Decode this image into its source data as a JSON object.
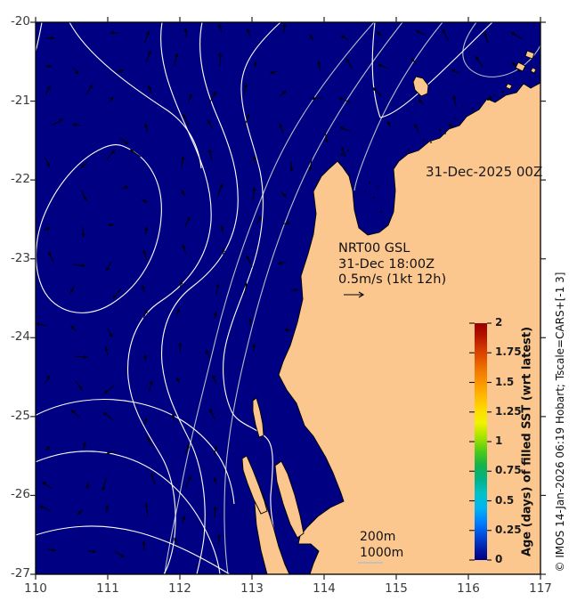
{
  "map": {
    "date_stamp": "31-Dec-2025 00Z",
    "forecast": {
      "model": "NRT00 GSL",
      "valid_time": "31-Dec 18:00Z",
      "vector_scale": "0.5m/s (1kt 12h)"
    },
    "depth_contour_legend": {
      "shallow": "200m",
      "deep": "1000m"
    },
    "credit": "© IMOS 14-Jan-2026 06:19 Hobart; Tscale=CARS+[-1 3]"
  },
  "axes": {
    "x_tick_labels": [
      "110",
      "111",
      "112",
      "113",
      "114",
      "115",
      "116",
      "117"
    ],
    "y_tick_labels": [
      "-20",
      "-21",
      "-22",
      "-23",
      "-24",
      "-25",
      "-26",
      "-27"
    ]
  },
  "colorbar": {
    "title": "Age (days) of filled SST (wrt latest)",
    "tick_labels": [
      "0",
      "0.25",
      "0.5",
      "0.75",
      "1",
      "1.25",
      "1.5",
      "1.75",
      "2"
    ]
  },
  "colors": {
    "ocean": "#000082",
    "land": "#FBC78F",
    "contour_200m": "#FFFFFF",
    "contour_1000m": "#B4BEC8",
    "vectors": "#000000"
  },
  "chart_data": {
    "type": "heatmap",
    "title": "",
    "xlabel": "",
    "ylabel": "",
    "x_range": [
      110,
      117
    ],
    "y_range": [
      -27,
      -20
    ],
    "x_ticks": [
      110,
      111,
      112,
      113,
      114,
      115,
      116,
      117
    ],
    "y_ticks": [
      -20,
      -21,
      -22,
      -23,
      -24,
      -25,
      -26,
      -27
    ],
    "field": "Age (days) of filled SST (wrt latest)",
    "field_values": "uniform ~0 days over entire ocean (whole sea area rendered at colorbar minimum, dark blue)",
    "colorbar": {
      "min": 0,
      "max": 2,
      "ticks": [
        0,
        0.25,
        0.5,
        0.75,
        1,
        1.25,
        1.5,
        1.75,
        2
      ],
      "label": "Age (days) of filled SST (wrt latest)",
      "colormap": "jet (dark blue -> cyan -> green -> yellow -> orange -> dark red)",
      "position": "inset right, vertical"
    },
    "annotations": [
      "31-Dec-2025 00Z",
      "NRT00 GSL",
      "31-Dec 18:00Z",
      "0.5m/s (1kt 12h)",
      "200m",
      "1000m",
      "© IMOS 14-Jan-2026 06:19 Hobart; Tscale=CARS+[-1 3]"
    ],
    "overlays": [
      "white 200m depth / SST contour lines",
      "grey 1000m depth contour lines",
      "black surface-current vector arrows (scale 0.5 m/s = 1 kt 12 h)",
      "tan land mask of Western Australia coast (Exmouth, Shark Bay)"
    ],
    "grid": false,
    "legend_position": "none"
  }
}
